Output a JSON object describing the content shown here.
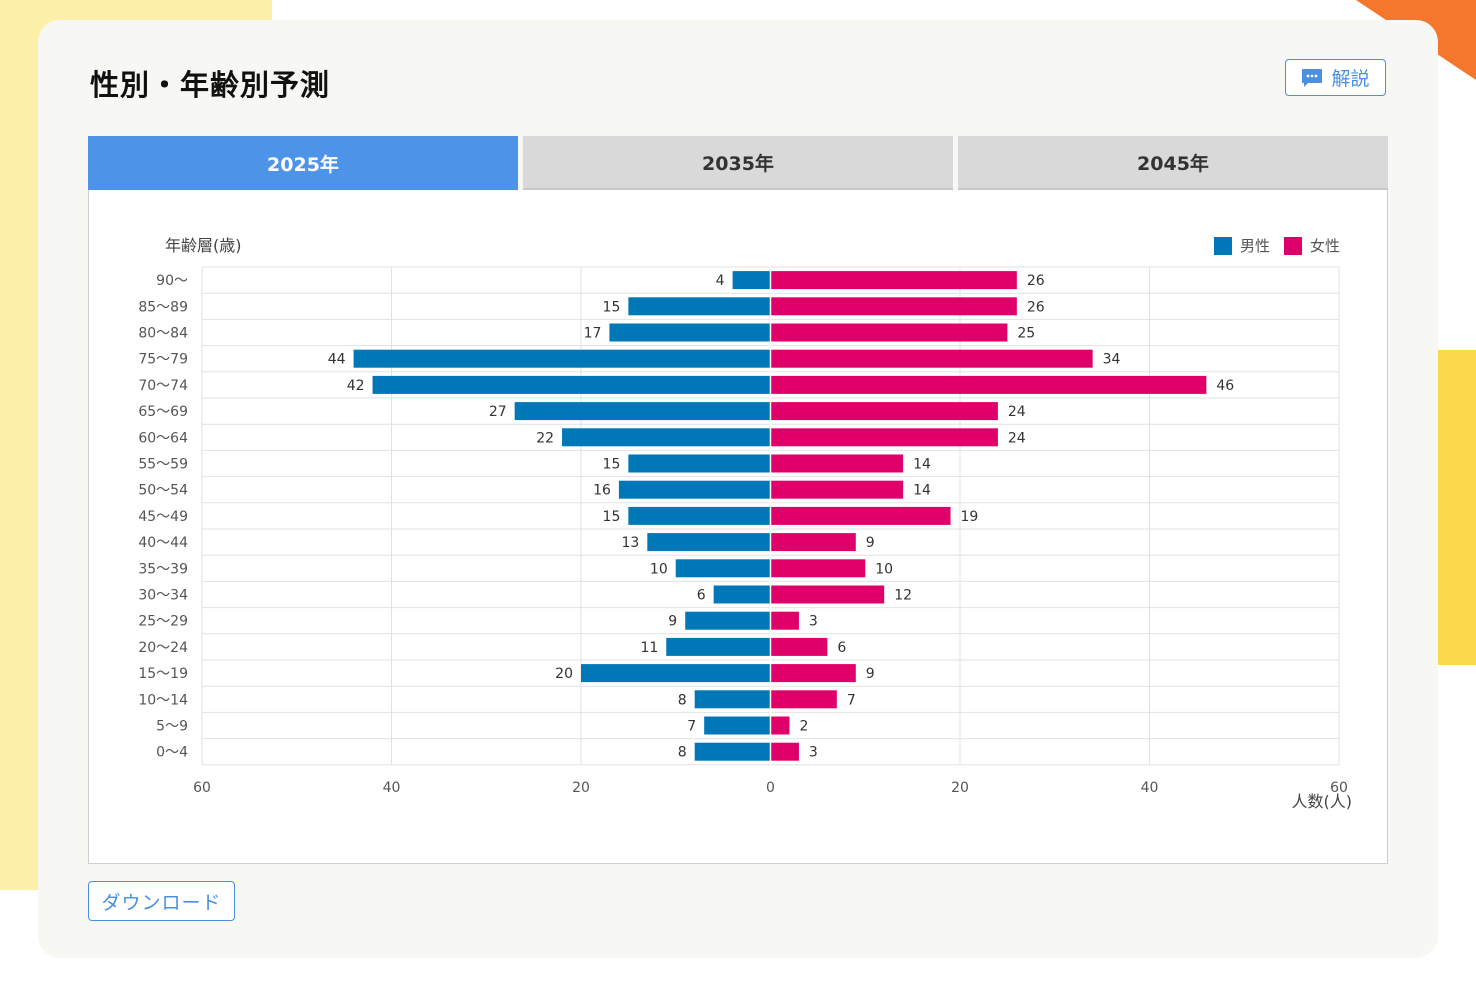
{
  "card": {
    "title": "性別・年齢別予測",
    "explain_label": "解説",
    "download_label": "ダウンロード"
  },
  "tabs": [
    {
      "label": "2025年",
      "active": true
    },
    {
      "label": "2035年",
      "active": false
    },
    {
      "label": "2045年",
      "active": false
    }
  ],
  "colors": {
    "male": "#0077b6",
    "female": "#e0006a",
    "tab_active": "#4d94e8",
    "accent": "#4a8fe0"
  },
  "chart_data": {
    "type": "bar",
    "orientation": "horizontal-diverging",
    "title": "",
    "ylabel": "年齢層(歳)",
    "xlabel": "人数(人)",
    "xlim": [
      -60,
      60
    ],
    "x_ticks": [
      "60",
      "40",
      "20",
      "0",
      "20",
      "40",
      "60"
    ],
    "grid": true,
    "legend_position": "top-right",
    "categories": [
      "90〜",
      "85〜89",
      "80〜84",
      "75〜79",
      "70〜74",
      "65〜69",
      "60〜64",
      "55〜59",
      "50〜54",
      "45〜49",
      "40〜44",
      "35〜39",
      "30〜34",
      "25〜29",
      "20〜24",
      "15〜19",
      "10〜14",
      "5〜9",
      "0〜4"
    ],
    "series": [
      {
        "name": "男性",
        "side": "left",
        "color": "#0077b6",
        "values": [
          4,
          15,
          17,
          44,
          42,
          27,
          22,
          15,
          16,
          15,
          13,
          10,
          6,
          9,
          11,
          20,
          8,
          7,
          8
        ]
      },
      {
        "name": "女性",
        "side": "right",
        "color": "#e0006a",
        "values": [
          26,
          26,
          25,
          34,
          46,
          24,
          24,
          14,
          14,
          19,
          9,
          10,
          12,
          3,
          6,
          9,
          7,
          2,
          3
        ]
      }
    ]
  }
}
